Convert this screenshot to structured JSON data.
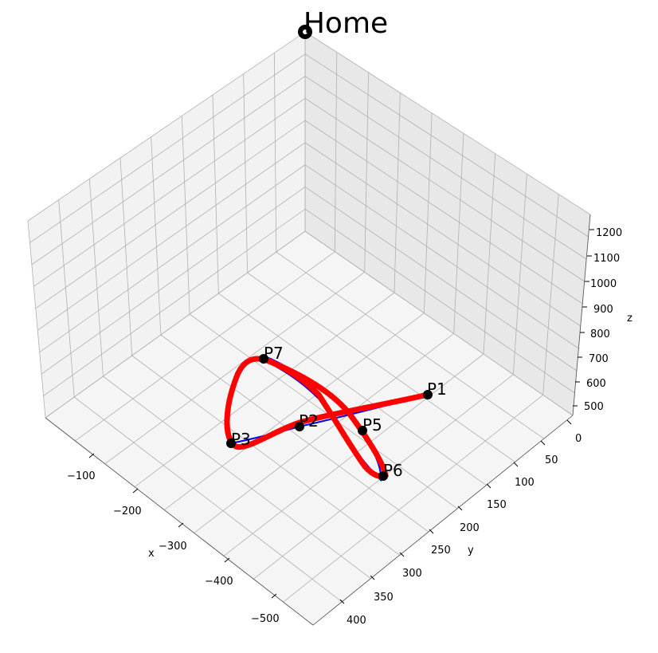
{
  "chart_data": {
    "type": "line3d",
    "title": "Home",
    "xlabel": "x",
    "ylabel": "y",
    "zlabel": "z",
    "x_ticks": [
      -100,
      -200,
      -300,
      -400,
      -500
    ],
    "x_tick_labels": [
      "−100",
      "−200",
      "−300",
      "−400",
      "−500"
    ],
    "y_ticks": [
      0,
      50,
      100,
      150,
      200,
      250,
      300,
      350,
      400
    ],
    "y_tick_labels": [
      "0",
      "50",
      "100",
      "150",
      "200",
      "250",
      "300",
      "350",
      "400"
    ],
    "z_ticks": [
      500,
      600,
      700,
      800,
      900,
      1000,
      1100,
      1200
    ],
    "z_tick_labels": [
      "500",
      "600",
      "700",
      "800",
      "900",
      "1000",
      "1100",
      "1200"
    ],
    "points": [
      {
        "name": "P1",
        "x": -60,
        "y": 40,
        "z": 600
      },
      {
        "name": "P2",
        "x": -230,
        "y": 150,
        "z": 600
      },
      {
        "name": "P3",
        "x": -330,
        "y": 20,
        "z": 600
      },
      {
        "name": "P5",
        "x": -150,
        "y": 150,
        "z": 600
      },
      {
        "name": "P6",
        "x": -190,
        "y": 260,
        "z": 600
      },
      {
        "name": "P7",
        "x": -190,
        "y": 40,
        "z": 720
      }
    ],
    "home_point": {
      "x": 0,
      "y": 0,
      "z": 1250
    },
    "series": [
      {
        "color": "#0000ff",
        "style": "line"
      },
      {
        "color": "#ff0000",
        "style": "line"
      },
      {
        "color": "#ff0000",
        "style": "markers"
      }
    ]
  }
}
